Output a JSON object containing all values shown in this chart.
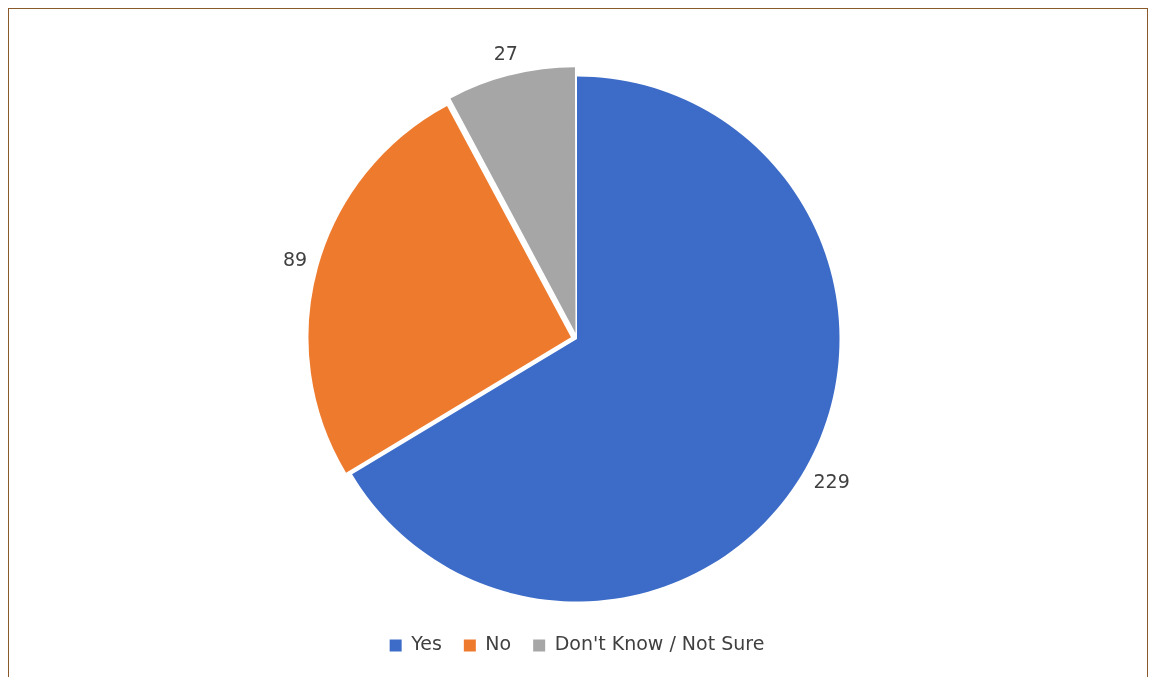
{
  "chart_data": {
    "type": "pie",
    "categories": [
      "Yes",
      "No",
      "Don't Know / Not Sure"
    ],
    "values": [
      229,
      89,
      27
    ],
    "colors": [
      "#3d6cc8",
      "#ee7a2e",
      "#a6a6a6"
    ],
    "data_labels": true,
    "legend": "bottom"
  }
}
